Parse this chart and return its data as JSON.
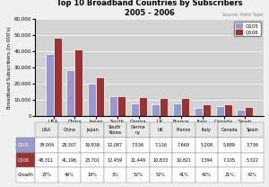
{
  "title": "Top 10 Broadband Countries by Subscribers\n2005 - 2006",
  "source": "Source: Point Topic",
  "ylabel": "Broadband Subscribers (In 000's)",
  "categories": [
    "USA",
    "China",
    "Japan",
    "South\nKorea",
    "Germa\nny",
    "UK",
    "France",
    "Italy",
    "Canada",
    "Spain"
  ],
  "q105": [
    38004,
    28307,
    19838,
    12087,
    7536,
    7116,
    7669,
    5208,
    5889,
    3736
  ],
  "q106": [
    48311,
    41196,
    23701,
    12459,
    11449,
    10833,
    10821,
    7394,
    7105,
    5322
  ],
  "growth": [
    "27%",
    "46%",
    "19%",
    "3%",
    "52%",
    "52%",
    "41%",
    "42%",
    "21%",
    "42%"
  ],
  "color_q105": "#9999cc",
  "color_q106": "#993333",
  "color_growth": "#cccccc",
  "ylim": [
    0,
    60000
  ],
  "yticks": [
    0,
    10000,
    20000,
    30000,
    40000,
    50000,
    60000
  ],
  "ytick_labels": [
    "0",
    "10,000",
    "20,000",
    "30,000",
    "40,000",
    "50,000",
    "60,000"
  ],
  "bg_color": "#d3d3d3",
  "table_q105_label": "Q105",
  "table_q106_label": "Q106",
  "table_growth_label": "Growth"
}
